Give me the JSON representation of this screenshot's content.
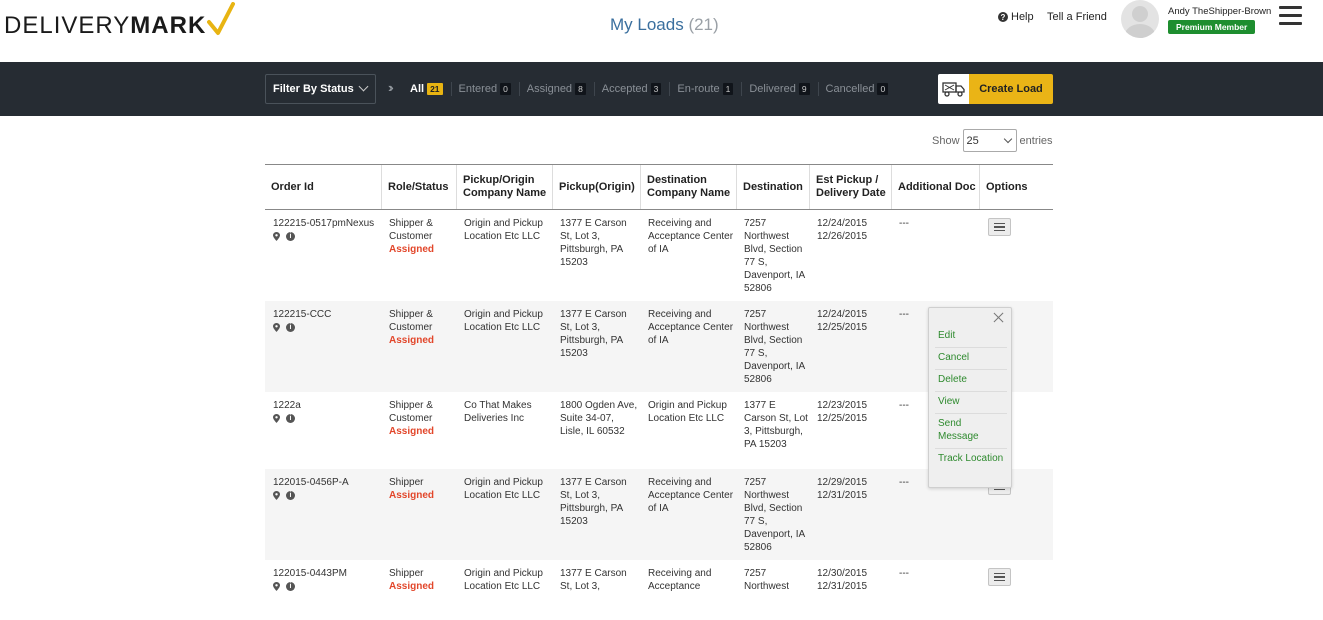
{
  "brand": {
    "part1": "DELIVERY",
    "part2": "MARK"
  },
  "header": {
    "title": "My Loads",
    "count": "(21)",
    "help": "Help",
    "tell_friend": "Tell a Friend",
    "user_name": "Andy TheShipper-Brown",
    "membership": "Premium Member"
  },
  "toolbar": {
    "filter_label": "Filter By Status",
    "tabs": [
      {
        "label": "All",
        "count": "21"
      },
      {
        "label": "Entered",
        "count": "0"
      },
      {
        "label": "Assigned",
        "count": "8"
      },
      {
        "label": "Accepted",
        "count": "3"
      },
      {
        "label": "En-route",
        "count": "1"
      },
      {
        "label": "Delivered",
        "count": "9"
      },
      {
        "label": "Cancelled",
        "count": "0"
      }
    ],
    "create_label": "Create Load"
  },
  "entries": {
    "show": "Show",
    "value": "25",
    "suffix": "entries"
  },
  "table": {
    "headers": [
      "Order Id",
      "Role/Status",
      "Pickup/Origin Company Name",
      "Pickup(Origin)",
      "Destination Company Name",
      "Destination",
      "Est Pickup / Delivery Date",
      "Additional Doc",
      "Options"
    ],
    "rows": [
      {
        "order": "122215-0517pmNexus",
        "role": "Shipper & Customer",
        "status": "Assigned",
        "pickup_company": "Origin and Pickup Location Etc LLC",
        "pickup": "1377 E Carson St, Lot 3, Pittsburgh, PA 15203",
        "dest_company": "Receiving and Acceptance Center of IA",
        "dest": "7257 Northwest Blvd, Section 77 S, Davenport, IA 52806",
        "dates": "12/24/2015\n12/26/2015",
        "doc": "---"
      },
      {
        "order": "122215-CCC",
        "role": "Shipper & Customer",
        "status": "Assigned",
        "pickup_company": "Origin and Pickup Location Etc LLC",
        "pickup": "1377 E Carson St, Lot 3, Pittsburgh, PA 15203",
        "dest_company": "Receiving and Acceptance Center of IA",
        "dest": "7257 Northwest Blvd, Section 77 S, Davenport, IA 52806",
        "dates": "12/24/2015\n12/25/2015",
        "doc": "---"
      },
      {
        "order": "1222a",
        "role": "Shipper & Customer",
        "status": "Assigned",
        "pickup_company": "Co That Makes Deliveries Inc",
        "pickup": "1800 Ogden Ave, Suite 34-07, Lisle, IL 60532",
        "dest_company": "Origin and Pickup Location Etc LLC",
        "dest": "1377 E Carson St, Lot 3, Pittsburgh, PA 15203",
        "dates": "12/23/2015\n12/25/2015",
        "doc": "---"
      },
      {
        "order": "122015-0456P-A",
        "role": "Shipper",
        "status": "Assigned",
        "pickup_company": "Origin and Pickup Location Etc LLC",
        "pickup": "1377 E Carson St, Lot 3, Pittsburgh, PA 15203",
        "dest_company": "Receiving and Acceptance Center of IA",
        "dest": "7257 Northwest Blvd, Section 77 S, Davenport, IA 52806",
        "dates": "12/29/2015\n12/31/2015",
        "doc": "---"
      },
      {
        "order": "122015-0443PM",
        "role": "Shipper",
        "status": "Assigned",
        "pickup_company": "Origin and Pickup Location Etc LLC",
        "pickup": "1377 E Carson St, Lot 3,",
        "dest_company": "Receiving and Acceptance",
        "dest": "7257 Northwest",
        "dates": "12/30/2015\n12/31/2015",
        "doc": "---"
      }
    ]
  },
  "options_menu": {
    "items": [
      "Edit",
      "Cancel",
      "Delete",
      "View",
      "Send Message",
      "Track Location"
    ]
  },
  "colors": {
    "toolbar_bg": "#262c33",
    "accent": "#eab416",
    "assigned": "#e2462a",
    "premium": "#1e8e2f",
    "title": "#3a6f9e"
  }
}
